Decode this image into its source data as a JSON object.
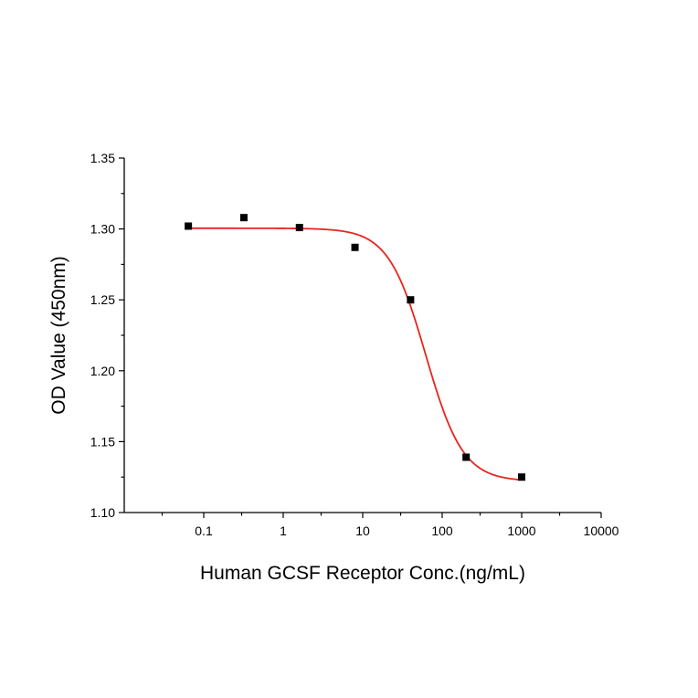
{
  "chart_data": {
    "type": "scatter",
    "title": "",
    "xlabel": "Human GCSF Receptor Conc.(ng/mL)",
    "ylabel": "OD Value (450nm)",
    "x_scale": "log",
    "xlim": [
      0.01,
      10000
    ],
    "ylim": [
      1.1,
      1.35
    ],
    "x_ticks": [
      {
        "value": 0.1,
        "label": "0.1"
      },
      {
        "value": 1,
        "label": "1"
      },
      {
        "value": 10,
        "label": "10"
      },
      {
        "value": 100,
        "label": "100"
      },
      {
        "value": 1000,
        "label": "1000"
      },
      {
        "value": 10000,
        "label": "10000"
      }
    ],
    "y_ticks": [
      {
        "value": 1.1,
        "label": "1.10"
      },
      {
        "value": 1.15,
        "label": "1.15"
      },
      {
        "value": 1.2,
        "label": "1.20"
      },
      {
        "value": 1.25,
        "label": "1.25"
      },
      {
        "value": 1.3,
        "label": "1.30"
      },
      {
        "value": 1.35,
        "label": "1.35"
      }
    ],
    "grid": false,
    "series": [
      {
        "kind": "points",
        "color": "#000000",
        "marker": "square",
        "points": [
          {
            "x": 0.064,
            "y": 1.302
          },
          {
            "x": 0.32,
            "y": 1.308
          },
          {
            "x": 1.6,
            "y": 1.301
          },
          {
            "x": 8,
            "y": 1.287
          },
          {
            "x": 40,
            "y": 1.25
          },
          {
            "x": 200,
            "y": 1.139
          },
          {
            "x": 1000,
            "y": 1.125
          }
        ]
      },
      {
        "kind": "fit",
        "model": "4PL",
        "color": "#e8251f",
        "top": 1.3005,
        "bottom": 1.122,
        "ec50": 62,
        "hill": 1.85,
        "x_range": [
          0.064,
          1000
        ]
      }
    ]
  }
}
